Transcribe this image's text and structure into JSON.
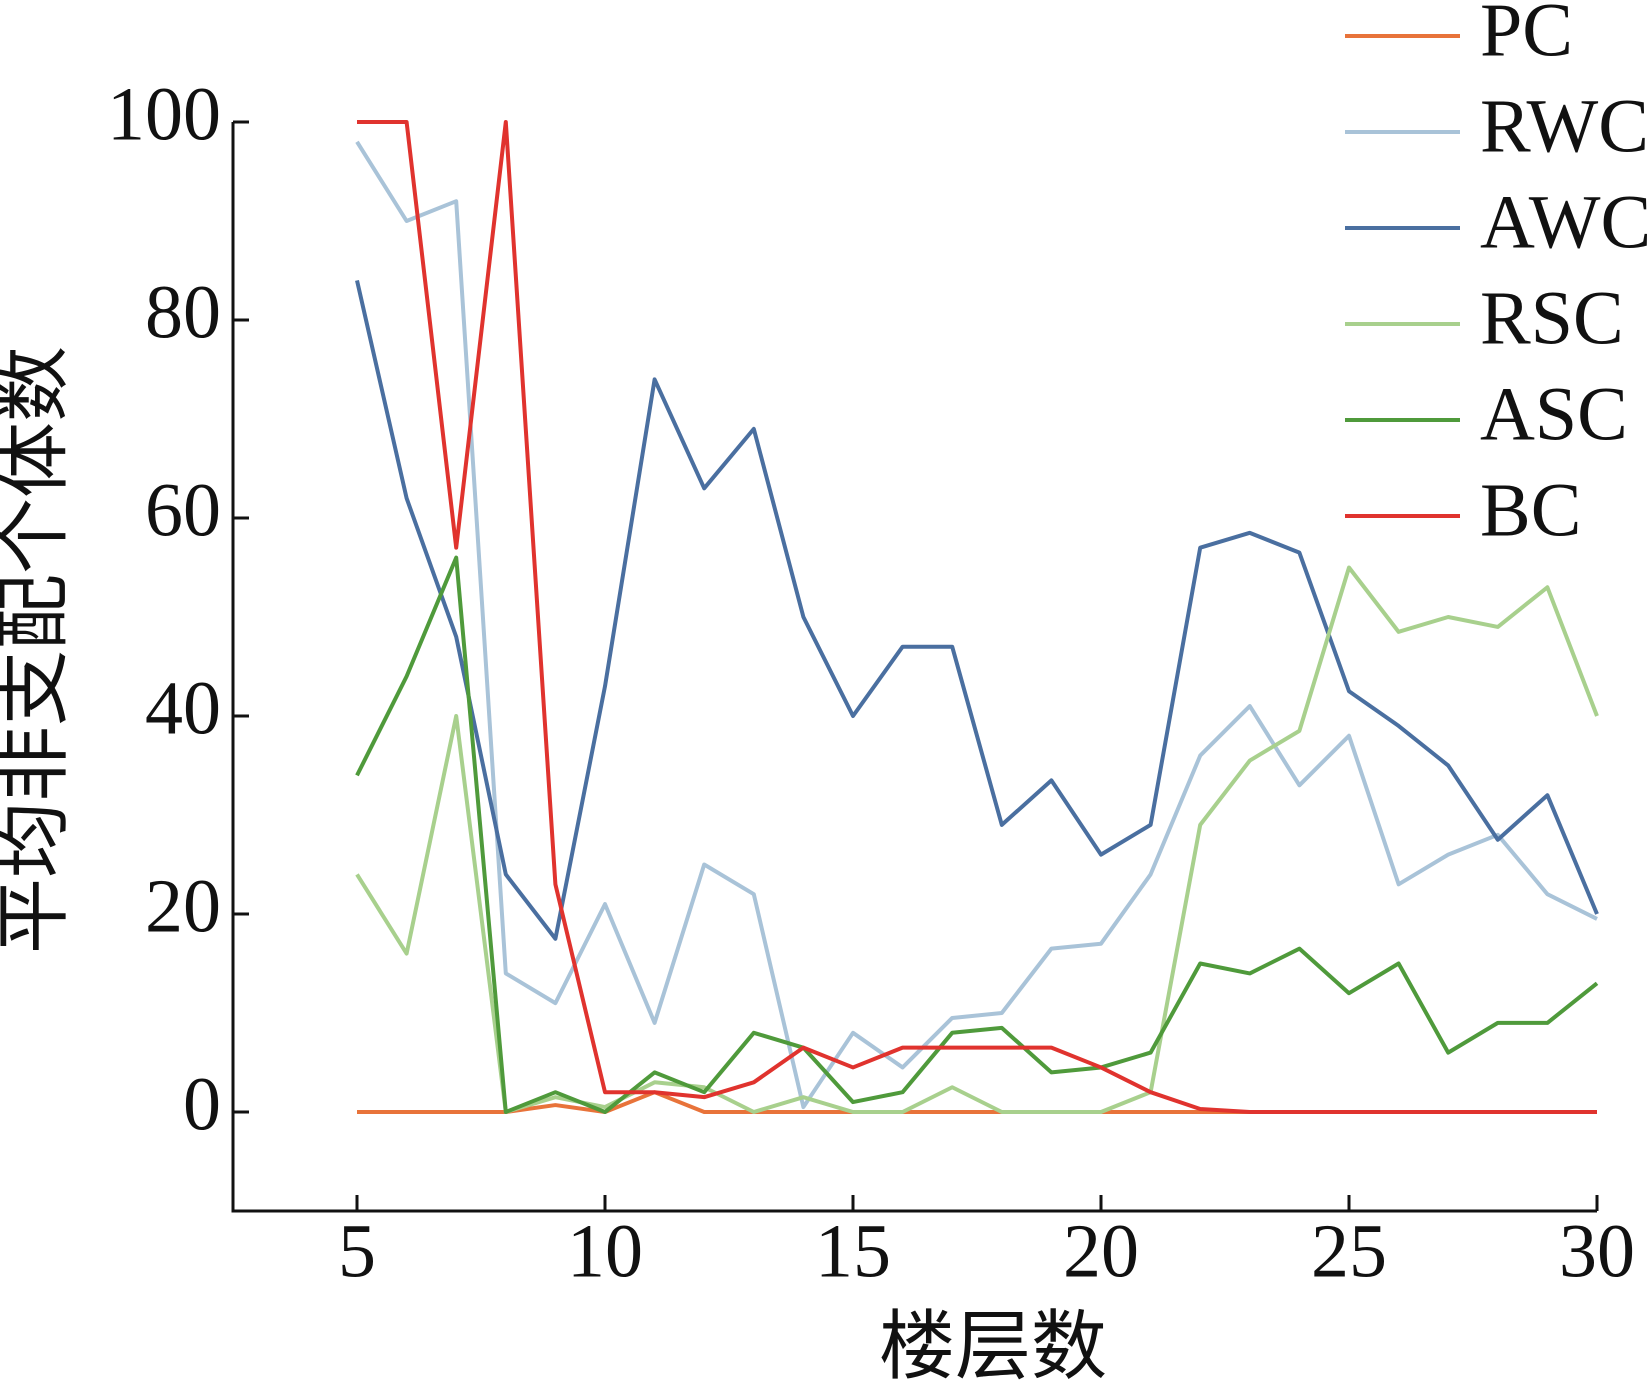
{
  "chart_data": {
    "type": "line",
    "x_label": "楼层数",
    "y_label": "平均非支配个体数",
    "x": [
      5,
      6,
      7,
      8,
      9,
      10,
      11,
      12,
      13,
      14,
      15,
      16,
      17,
      18,
      19,
      20,
      21,
      22,
      23,
      24,
      25,
      26,
      27,
      28,
      29,
      30
    ],
    "series": [
      {
        "name": "PC",
        "color": "#e8733a",
        "values": [
          0,
          0,
          0,
          0,
          0.7,
          0,
          2,
          0,
          0,
          0,
          0,
          0,
          0,
          0,
          0,
          0,
          0,
          0,
          0,
          0,
          0,
          0,
          0,
          0,
          0,
          0
        ]
      },
      {
        "name": "RWC",
        "color": "#a9c3d8",
        "values": [
          98,
          90,
          92,
          14,
          11,
          21,
          9,
          25,
          22,
          0.5,
          8,
          4.5,
          9.5,
          10,
          16.5,
          17,
          24,
          36,
          41,
          33,
          38,
          23,
          26,
          28,
          22,
          19.5
        ]
      },
      {
        "name": "AWC",
        "color": "#4a6fa0",
        "values": [
          84,
          62,
          48,
          24,
          17.5,
          43,
          74,
          63,
          69,
          50,
          40,
          47,
          47,
          29,
          33.5,
          26,
          29,
          57,
          58.5,
          56.5,
          42.5,
          39,
          35,
          27.5,
          32,
          20
        ]
      },
      {
        "name": "RSC",
        "color": "#a8d08d",
        "values": [
          24,
          16,
          40,
          0,
          1.5,
          0.5,
          3,
          2.5,
          0,
          1.5,
          0,
          0,
          2.5,
          0,
          0,
          0,
          2,
          29,
          35.5,
          38.5,
          55,
          48.5,
          50,
          49,
          53,
          40
        ]
      },
      {
        "name": "ASC",
        "color": "#4f9a3b",
        "values": [
          34,
          44,
          56,
          0,
          2,
          0,
          4,
          2,
          8,
          6.5,
          1,
          2,
          8,
          8.5,
          4,
          4.5,
          6,
          15,
          14,
          16.5,
          12,
          15,
          6,
          9,
          9,
          13
        ]
      },
      {
        "name": "BC",
        "color": "#e0332e",
        "values": [
          100,
          100,
          57,
          100,
          23,
          2,
          2,
          1.5,
          3,
          6.5,
          4.5,
          6.5,
          6.5,
          6.5,
          6.5,
          4.5,
          2,
          0.3,
          0,
          0,
          0,
          0,
          0,
          0,
          0,
          0
        ]
      }
    ],
    "xlim": [
      2.5,
      30
    ],
    "ylim": [
      -10,
      100
    ],
    "xticks": [
      5,
      10,
      15,
      20,
      25,
      30
    ],
    "yticks": [
      0,
      20,
      40,
      60,
      80,
      100
    ],
    "legend": "upper right"
  }
}
